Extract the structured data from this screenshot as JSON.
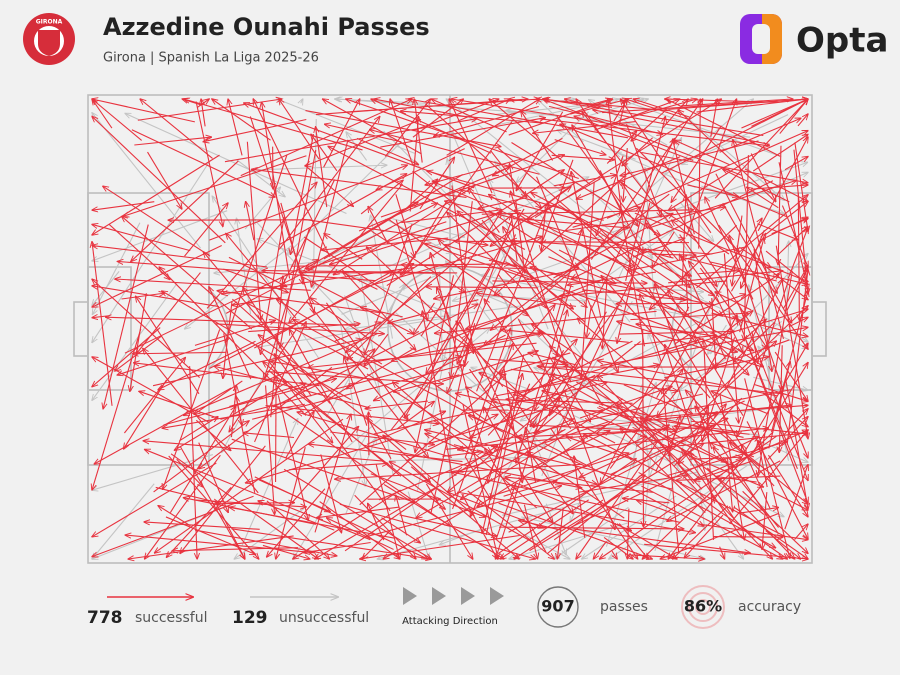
{
  "header": {
    "title": "Azzedine Ounahi Passes",
    "subtitle": "Girona | Spanish La Liga 2025-26",
    "brand": "Opta",
    "badge": "GIRONA"
  },
  "legend": {
    "successful": {
      "value": 778,
      "label": "successful"
    },
    "unsuccessful": {
      "value": 129,
      "label": "unsuccessful"
    },
    "direction": "Attacking Direction",
    "passes": {
      "value": 907,
      "label": "passes"
    },
    "accuracy": {
      "value": 86,
      "value_label": "86%",
      "label": "accuracy"
    }
  }
}
